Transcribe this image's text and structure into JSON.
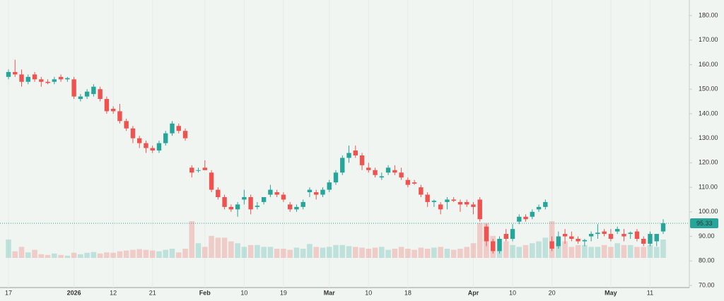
{
  "chart_data": {
    "type": "candlestick",
    "categories": [
      "17",
      null,
      null,
      null,
      null,
      null,
      null,
      null,
      null,
      null,
      "2026",
      null,
      null,
      null,
      null,
      null,
      "12",
      null,
      null,
      null,
      null,
      null,
      "21",
      null,
      null,
      null,
      null,
      null,
      null,
      null,
      "Feb",
      null,
      null,
      null,
      null,
      null,
      "10",
      null,
      null,
      null,
      null,
      null,
      "19",
      null,
      null,
      null,
      null,
      null,
      null,
      "Mar",
      null,
      null,
      null,
      null,
      null,
      "10",
      null,
      null,
      null,
      null,
      null,
      "18",
      null,
      null,
      null,
      null,
      null,
      null,
      null,
      null,
      null,
      "Apr",
      null,
      null,
      null,
      null,
      null,
      "10",
      null,
      null,
      null,
      null,
      null,
      "20",
      null,
      null,
      null,
      null,
      null,
      null,
      null,
      null,
      "May",
      null,
      null,
      null,
      null,
      null,
      "11",
      null,
      null
    ],
    "open": [
      155,
      157,
      156,
      153,
      156,
      154,
      153,
      153,
      155,
      154,
      154,
      146,
      147,
      148,
      150,
      146,
      142,
      141,
      137,
      134,
      130,
      128,
      126,
      125,
      128,
      132,
      135,
      133,
      118,
      117,
      118,
      116,
      109,
      106,
      102,
      101,
      105,
      106,
      102,
      104,
      107,
      108,
      107,
      103,
      101,
      102,
      108,
      108,
      107,
      109,
      112,
      116,
      122,
      125,
      123,
      118,
      117,
      114,
      116,
      117,
      116,
      113,
      112,
      110,
      107,
      104,
      103,
      104,
      105,
      104,
      104,
      103,
      105,
      94,
      88,
      84,
      91,
      89,
      96,
      98,
      98,
      101,
      102,
      88,
      86,
      91,
      90,
      89,
      88,
      90,
      91,
      92,
      91,
      92,
      91,
      91,
      92,
      89,
      87,
      88,
      92
    ],
    "high": [
      158,
      162,
      158,
      156,
      157,
      155,
      154,
      155,
      156,
      155,
      155,
      148,
      150,
      152,
      151,
      147,
      143,
      144,
      138,
      135,
      131,
      129,
      127,
      129,
      133,
      137,
      136,
      134,
      119,
      118,
      121,
      117,
      110,
      107,
      103,
      104,
      109,
      107,
      104,
      106,
      111,
      109,
      108,
      104,
      103,
      105,
      110,
      109,
      110,
      113,
      117,
      123,
      127,
      127,
      124,
      120,
      118,
      116,
      119,
      119,
      118,
      114,
      113,
      111,
      108,
      105,
      104,
      106,
      106,
      105,
      105,
      104,
      106,
      95,
      89,
      90,
      93,
      95,
      99,
      99,
      101,
      103,
      105,
      90,
      92,
      93,
      92,
      90,
      89,
      92,
      95,
      93,
      93,
      94,
      93,
      92,
      93,
      90,
      92,
      91,
      97
    ],
    "low": [
      154,
      155,
      151,
      152,
      153,
      151,
      152,
      152,
      153,
      153,
      146,
      145,
      146,
      147,
      145,
      140,
      140,
      136,
      133,
      128,
      126,
      124,
      124,
      124,
      127,
      131,
      132,
      129,
      114,
      116,
      117,
      108,
      105,
      101,
      100,
      98,
      103,
      99,
      101,
      103,
      106,
      106,
      104,
      100,
      100,
      101,
      106,
      105,
      106,
      108,
      111,
      115,
      120,
      122,
      117,
      116,
      114,
      113,
      115,
      115,
      113,
      110,
      111,
      106,
      102,
      102,
      99,
      101,
      104,
      100,
      102,
      99,
      96,
      86,
      83,
      83,
      88,
      88,
      95,
      96,
      97,
      100,
      101,
      84,
      85,
      87,
      88,
      87,
      86,
      88,
      89,
      90,
      88,
      91,
      88,
      89,
      88,
      86,
      86,
      86,
      91
    ],
    "close": [
      157,
      156,
      153,
      155,
      154,
      153,
      152.5,
      154,
      154,
      154.5,
      147,
      147,
      149,
      151,
      146,
      141,
      141,
      137,
      134,
      130,
      128,
      126,
      125,
      128,
      132,
      136,
      133,
      130,
      116,
      117,
      117,
      109,
      106,
      102,
      101,
      103,
      106,
      101,
      102.5,
      106,
      109,
      107,
      105,
      101,
      102,
      104,
      109,
      107,
      109,
      112,
      116,
      122,
      124,
      123,
      119,
      117,
      115,
      114.5,
      118,
      116,
      114,
      111,
      111.5,
      107,
      104,
      104.5,
      101,
      105,
      104.5,
      103,
      103,
      102,
      97,
      88,
      84,
      89,
      89,
      93,
      98,
      97,
      100,
      102,
      104,
      85,
      90,
      90,
      89,
      88,
      88.5,
      91,
      91.5,
      91,
      89,
      93,
      90,
      91.5,
      89,
      87,
      91,
      91,
      95.33
    ],
    "volume": [
      50,
      18,
      30,
      15,
      22,
      10,
      8,
      12,
      8,
      6,
      14,
      10,
      14,
      16,
      12,
      15,
      14,
      18,
      20,
      22,
      24,
      22,
      20,
      18,
      22,
      25,
      15,
      25,
      100,
      40,
      30,
      60,
      55,
      55,
      45,
      40,
      30,
      35,
      35,
      30,
      30,
      25,
      25,
      22,
      28,
      25,
      38,
      30,
      28,
      30,
      35,
      35,
      32,
      30,
      28,
      25,
      28,
      30,
      22,
      25,
      30,
      25,
      22,
      28,
      25,
      28,
      30,
      25,
      22,
      25,
      30,
      40,
      95,
      95,
      60,
      50,
      45,
      35,
      30,
      35,
      40,
      45,
      55,
      100,
      40,
      45,
      30,
      35,
      35,
      30,
      30,
      35,
      30,
      40,
      35,
      35,
      30,
      30,
      35,
      30,
      50
    ],
    "up_color": "#26a69a",
    "down_color": "#ef5350",
    "ylim": [
      70,
      180
    ],
    "yticks": [
      {
        "value": 70,
        "label": "70.00"
      },
      {
        "value": 80,
        "label": "80.00"
      },
      {
        "value": 90,
        "label": "90.00"
      },
      {
        "value": 100,
        "label": "100.00"
      },
      {
        "value": 110,
        "label": "110.00"
      },
      {
        "value": 120,
        "label": "120.00"
      },
      {
        "value": 130,
        "label": "130.00"
      },
      {
        "value": 140,
        "label": "140.00"
      },
      {
        "value": 150,
        "label": "150.00"
      },
      {
        "value": 160,
        "label": "160.00"
      },
      {
        "value": 170,
        "label": "170.00"
      },
      {
        "value": 180,
        "label": "180.00"
      }
    ],
    "grid": true
  }
}
